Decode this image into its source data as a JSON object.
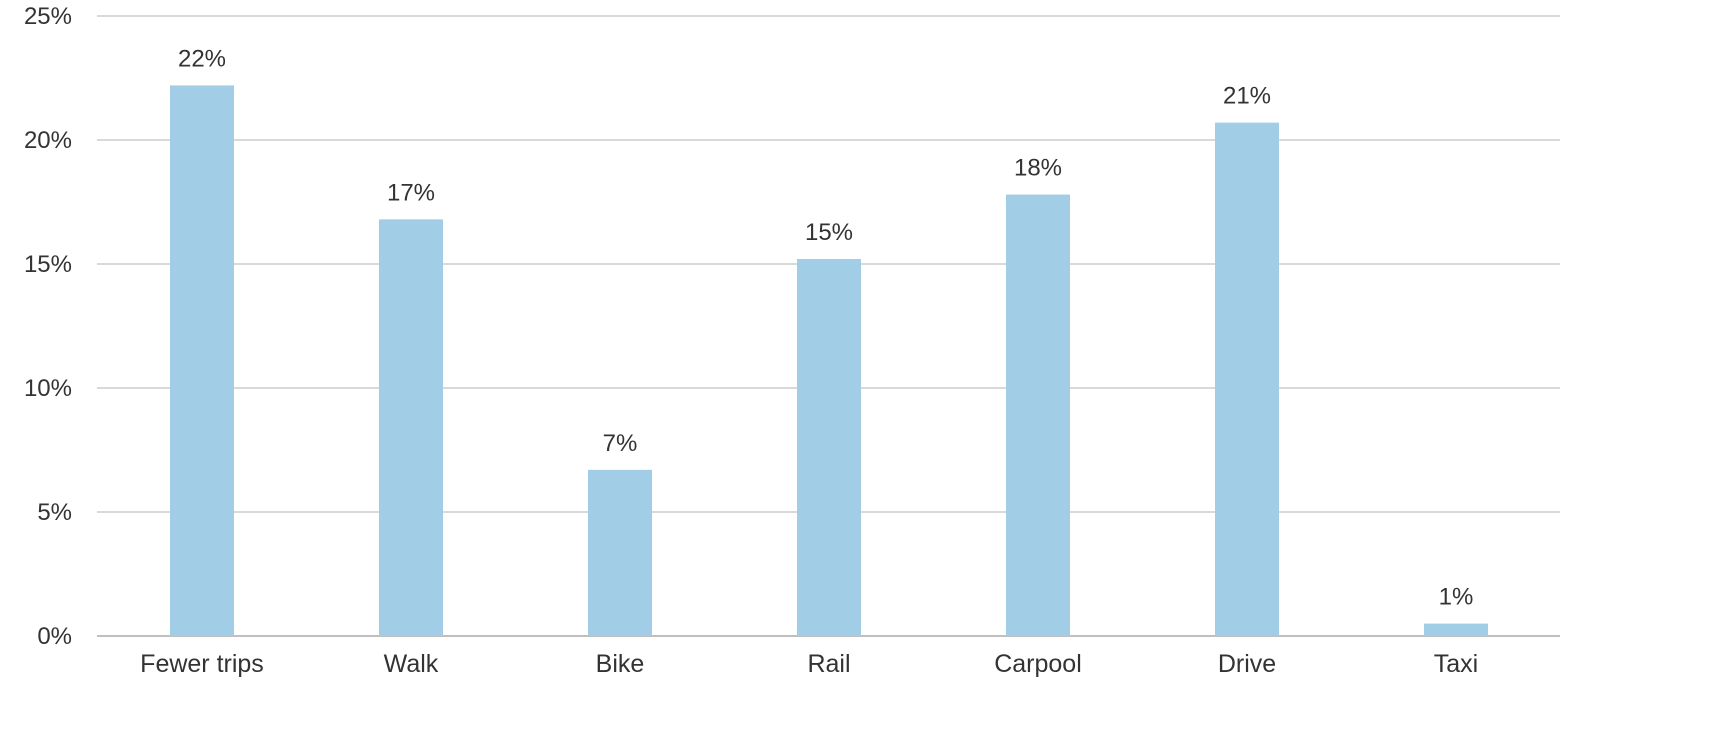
{
  "chart_data": {
    "type": "bar",
    "categories": [
      "Fewer trips",
      "Walk",
      "Bike",
      "Rail",
      "Carpool",
      "Drive",
      "Taxi"
    ],
    "values": [
      22.2,
      16.8,
      6.7,
      15.2,
      17.8,
      20.7,
      0.5
    ],
    "data_labels": [
      "22%",
      "17%",
      "7%",
      "15%",
      "18%",
      "21%",
      "1%"
    ],
    "ylim": [
      0,
      25
    ],
    "yticks": [
      0,
      5,
      10,
      15,
      20,
      25
    ],
    "ytick_labels": [
      "0%",
      "5%",
      "10%",
      "15%",
      "20%",
      "25%"
    ],
    "grid": true,
    "legend": "none",
    "bar_color": "#a1cde6",
    "title": "",
    "xlabel": "",
    "ylabel": ""
  }
}
